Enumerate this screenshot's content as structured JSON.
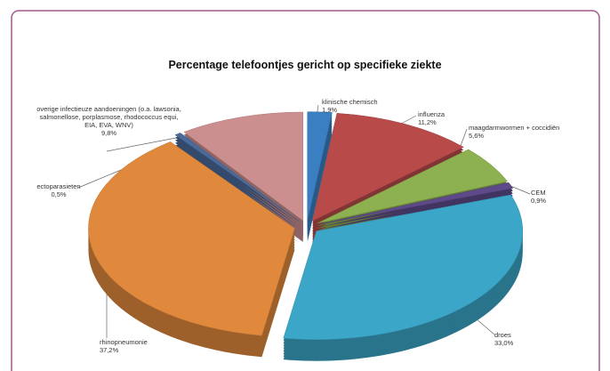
{
  "chart_data": {
    "type": "pie",
    "title": "Percentage telefoontjes gericht op specifieke ziekte",
    "categories": [
      "klinische chemisch",
      "influenza",
      "maagdarmwormen + coccidiën",
      "CEM",
      "droes",
      "rhinopneumonie",
      "ectoparasieten",
      "overige infectieuze aandoeningen (o.a. lawsonia, salmonellose, porplasmose, rhodococcus equi, EIA, EVA, WNV)"
    ],
    "values": [
      1.9,
      11.2,
      5.6,
      0.9,
      33.0,
      37.2,
      0.5,
      9.8
    ],
    "value_labels": [
      "1,9%",
      "11,2%",
      "5,6%",
      "0,9%",
      "33,0%",
      "37,2%",
      "0,5%",
      "9,8%"
    ],
    "colors": [
      "#3a7fc1",
      "#b84a4a",
      "#8db050",
      "#5e4a8a",
      "#3ba6c7",
      "#e0893d",
      "#4a6a9a",
      "#cc8f8f"
    ]
  }
}
